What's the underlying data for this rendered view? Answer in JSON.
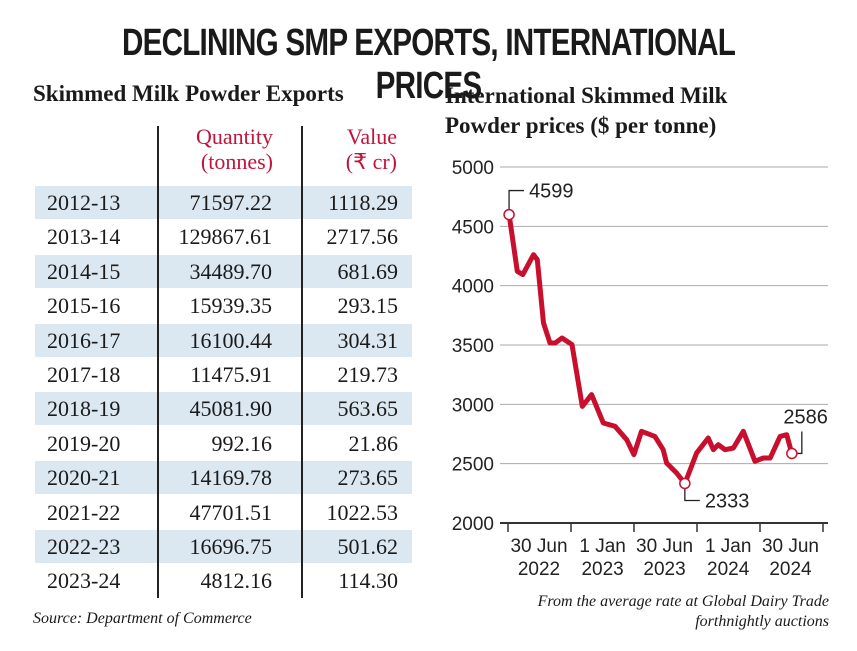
{
  "title": "DECLINING SMP EXPORTS, INTERNATIONAL PRICES",
  "table": {
    "title": "Skimmed Milk Powder Exports",
    "headers": {
      "quantity": "Quantity",
      "quantity_unit": "(tonnes)",
      "value": "Value",
      "value_unit": "(₹ cr)"
    },
    "rows": [
      {
        "year": "2012-13",
        "quantity": "71597.22",
        "value": "1118.29"
      },
      {
        "year": "2013-14",
        "quantity": "129867.61",
        "value": "2717.56"
      },
      {
        "year": "2014-15",
        "quantity": "34489.70",
        "value": "681.69"
      },
      {
        "year": "2015-16",
        "quantity": "15939.35",
        "value": "293.15"
      },
      {
        "year": "2016-17",
        "quantity": "16100.44",
        "value": "304.31"
      },
      {
        "year": "2017-18",
        "quantity": "11475.91",
        "value": "219.73"
      },
      {
        "year": "2018-19",
        "quantity": "45081.90",
        "value": "563.65"
      },
      {
        "year": "2019-20",
        "quantity": "992.16",
        "value": "21.86"
      },
      {
        "year": "2020-21",
        "quantity": "14169.78",
        "value": "273.65"
      },
      {
        "year": "2021-22",
        "quantity": "47701.51",
        "value": "1022.53"
      },
      {
        "year": "2022-23",
        "quantity": "16696.75",
        "value": "501.62"
      },
      {
        "year": "2023-24",
        "quantity": "4812.16",
        "value": "114.30"
      }
    ],
    "source": "Source: Department of Commerce",
    "header_color": "#c0143c",
    "stripe_color": "#dce8f1"
  },
  "chart_data": {
    "type": "line",
    "title_line1": "International Skimmed Milk",
    "title_line2": "Powder prices ($ per tonne)",
    "ylim": [
      2000,
      5000
    ],
    "yticks": [
      "2000",
      "2500",
      "3000",
      "3500",
      "4000",
      "4500",
      "5000"
    ],
    "xticks": [
      {
        "date": "2022-06-30",
        "line1": "30 Jun",
        "line2": "2022"
      },
      {
        "date": "2023-01-01",
        "line1": "1 Jan",
        "line2": "2023"
      },
      {
        "date": "2023-06-30",
        "line1": "30 Jun",
        "line2": "2023"
      },
      {
        "date": "2024-01-01",
        "line1": "1 Jan",
        "line2": "2024"
      },
      {
        "date": "2024-06-30",
        "line1": "30 Jun",
        "line2": "2024"
      }
    ],
    "grid": true,
    "color": "#c8102e",
    "x": [
      "2022-04-04",
      "2022-04-28",
      "2022-05-14",
      "2022-06-14",
      "2022-06-25",
      "2022-07-13",
      "2022-08-01",
      "2022-08-16",
      "2022-09-05",
      "2022-10-04",
      "2022-11-03",
      "2022-11-30",
      "2023-01-03",
      "2023-02-06",
      "2023-03-12",
      "2023-04-02",
      "2023-04-24",
      "2023-06-02",
      "2023-06-26",
      "2023-07-06",
      "2023-08-04",
      "2023-08-28",
      "2023-10-01",
      "2023-11-04",
      "2023-11-19",
      "2023-12-03",
      "2023-12-23",
      "2024-01-16",
      "2024-02-14",
      "2024-03-19",
      "2024-04-12",
      "2024-05-02",
      "2024-05-31",
      "2024-06-19",
      "2024-07-04"
    ],
    "values": [
      4599,
      4121,
      4093,
      4261,
      4219,
      3685,
      3517,
      3517,
      3559,
      3503,
      2983,
      3082,
      2843,
      2815,
      2702,
      2576,
      2773,
      2730,
      2618,
      2506,
      2421,
      2333,
      2590,
      2716,
      2618,
      2660,
      2618,
      2632,
      2773,
      2520,
      2548,
      2548,
      2730,
      2744,
      2586
    ],
    "annotations": [
      {
        "date": "2022-04-04",
        "value": 4599,
        "label": "4599"
      },
      {
        "date": "2023-08-28",
        "value": 2333,
        "label": "2333"
      },
      {
        "date": "2024-07-04",
        "value": 2586,
        "label": "2586"
      }
    ],
    "note_line1": "From the average rate at Global Dairy Trade",
    "note_line2": "forthnightly auctions"
  }
}
